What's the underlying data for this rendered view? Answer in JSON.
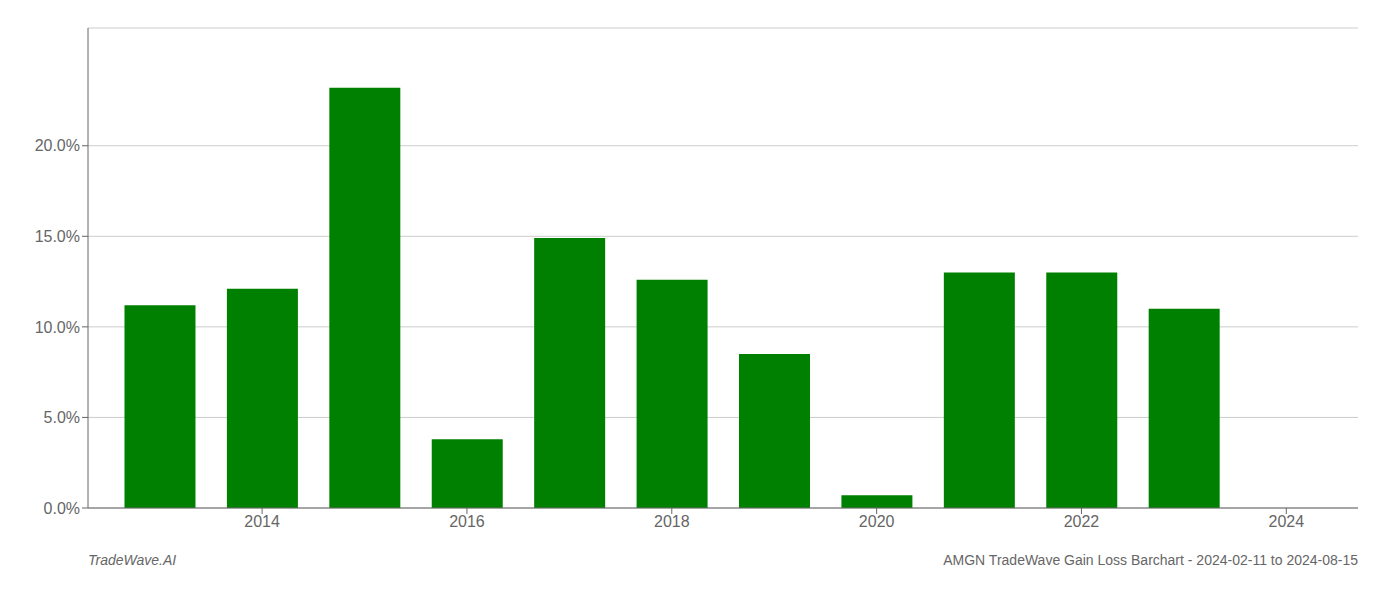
{
  "chart_data": {
    "type": "bar",
    "title": "AMGN TradeWave Gain Loss Barchart - 2024-02-11 to 2024-08-15",
    "annotations": [
      "TradeWave.AI"
    ],
    "x": [
      2013,
      2014,
      2015,
      2016,
      2017,
      2018,
      2019,
      2020,
      2021,
      2022,
      2023
    ],
    "values": [
      0.112,
      0.121,
      0.232,
      0.038,
      0.149,
      0.126,
      0.085,
      0.007,
      0.13,
      0.13,
      0.11
    ],
    "color": "#008000",
    "xlim": [
      2012.3,
      2024.7
    ],
    "xticks": [
      2014,
      2016,
      2018,
      2020,
      2022,
      2024
    ],
    "ylim": [
      0,
      0.265
    ],
    "yticks": [
      {
        "value": 0.0,
        "label": "0.0%"
      },
      {
        "value": 0.05,
        "label": "5.0%"
      },
      {
        "value": 0.1,
        "label": "10.0%"
      },
      {
        "value": 0.15,
        "label": "15.0%"
      },
      {
        "value": 0.2,
        "label": "20.0%"
      }
    ],
    "grid": true
  }
}
